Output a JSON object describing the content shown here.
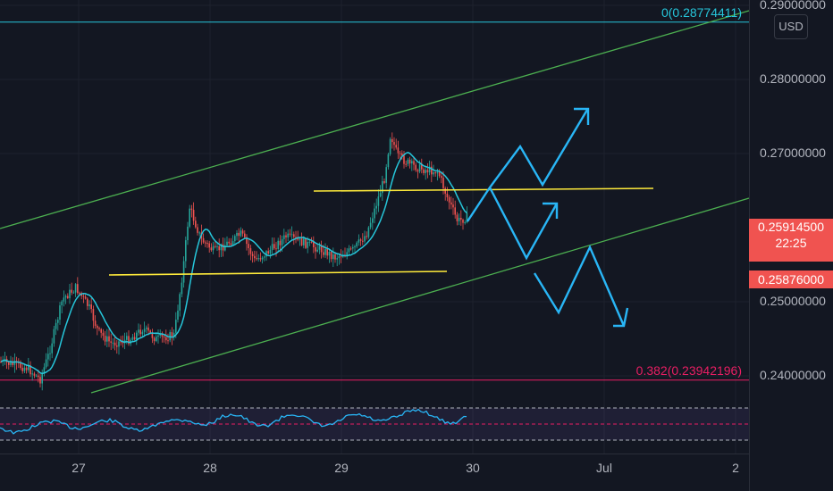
{
  "price_scale": {
    "currency": "USD",
    "ticks": [
      {
        "label": "0.29000000",
        "value": 0.29
      },
      {
        "label": "0.28000000",
        "value": 0.28
      },
      {
        "label": "0.27000000",
        "value": 0.27
      },
      {
        "label": "0.25000000",
        "value": 0.25
      },
      {
        "label": "0.24000000",
        "value": 0.24
      }
    ],
    "current_price": "0.25914500",
    "countdown": "22:25",
    "second_price": "0.25876000"
  },
  "time_scale": {
    "ticks": [
      {
        "label": "27",
        "pos": 0
      },
      {
        "label": "28",
        "pos": 1
      },
      {
        "label": "29",
        "pos": 2
      },
      {
        "label": "30",
        "pos": 3
      },
      {
        "label": "Jul",
        "pos": 4
      },
      {
        "label": "2",
        "pos": 5
      }
    ]
  },
  "fib_levels": [
    {
      "label": "0(0.28774411)",
      "value": 0.28774411,
      "color": "#26c6da"
    },
    {
      "label": "0.382(0.23942196)",
      "value": 0.23942196,
      "color": "#e91e63"
    }
  ],
  "colors": {
    "up": "#26a69a",
    "down": "#ef5350",
    "ma": "#26c6da",
    "channel": "#4caf50",
    "support": "#ffeb3b",
    "arrows": "#29b6f6",
    "rsi": "#29b6f6"
  }
}
